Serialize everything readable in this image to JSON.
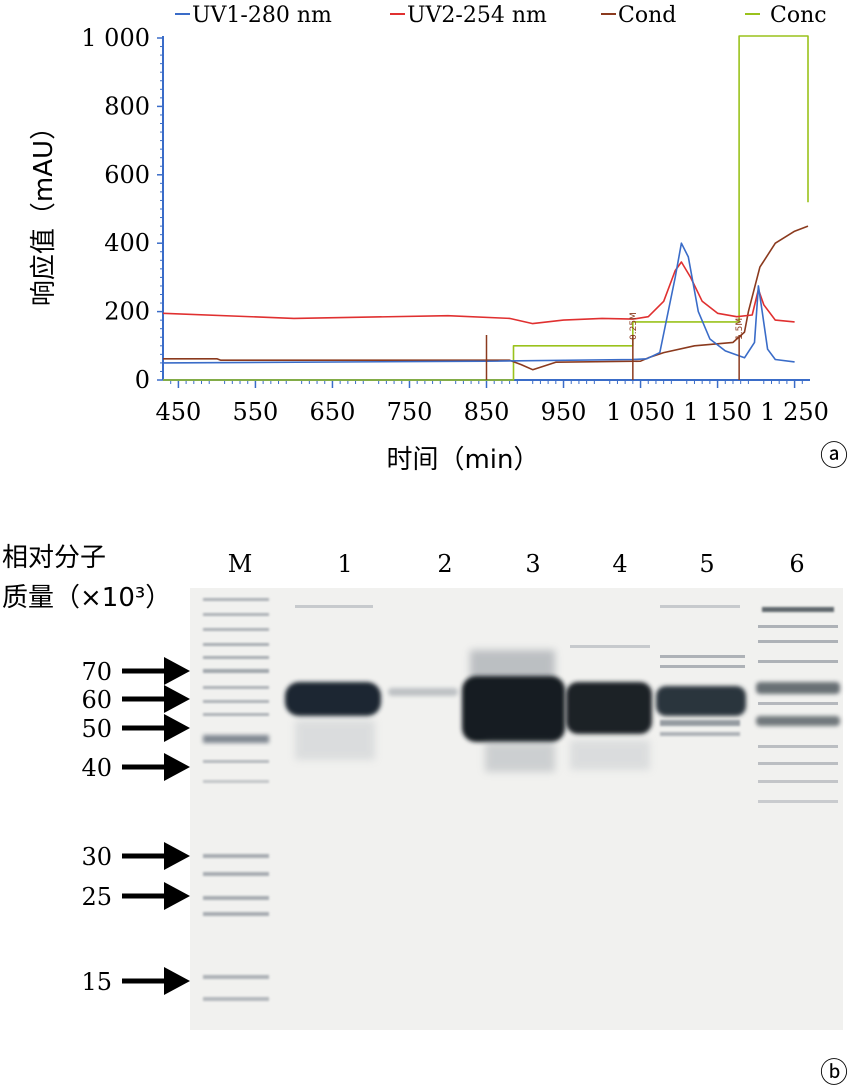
{
  "panel_a": {
    "letter": "ⓐ",
    "xlabel": "时间（min）",
    "ylabel": "响应值（mAU）",
    "legend": [
      "UV1-280 nm",
      "UV2-254 nm",
      "Cond",
      "Conc"
    ],
    "markers": [
      "0.25M",
      "1.5M"
    ]
  },
  "panel_b": {
    "letter": "ⓑ",
    "mw_label_line1": "相对分子",
    "mw_label_line2": "质量（×10³）",
    "lanes": [
      "M",
      "1",
      "2",
      "3",
      "4",
      "5",
      "6"
    ],
    "markers": [
      "70",
      "60",
      "50",
      "40",
      "30",
      "25",
      "15"
    ]
  },
  "colors": {
    "uv280": "#3a6cc8",
    "uv254": "#e03030",
    "cond": "#8b3a1e",
    "conc": "#9ac21c",
    "axis": "#3a6cc8",
    "gel": "#f1f1ef",
    "band": "#1e2830"
  },
  "chart_data": [
    {
      "type": "line",
      "xlabel": "时间（min）",
      "ylabel": "响应值（mAU）",
      "xticks": [
        "450",
        "550",
        "650",
        "750",
        "850",
        "950",
        "1 050",
        "1 150",
        "1 250"
      ],
      "yticks": [
        "0",
        "200",
        "400",
        "600",
        "800",
        "1 000"
      ],
      "xlim": [
        430,
        1270
      ],
      "ylim": [
        0,
        1000
      ],
      "grid": false,
      "legend_position": "top",
      "series": [
        {
          "name": "UV1-280 nm",
          "color": "#3a6cc8",
          "x": [
            430,
            850,
            1040,
            1058,
            1075,
            1095,
            1103,
            1112,
            1125,
            1140,
            1160,
            1185,
            1198,
            1203,
            1208,
            1215,
            1225,
            1250
          ],
          "y": [
            50,
            55,
            60,
            62,
            80,
            300,
            400,
            360,
            200,
            120,
            85,
            65,
            110,
            275,
            200,
            90,
            60,
            53
          ]
        },
        {
          "name": "UV2-254 nm",
          "color": "#e03030",
          "x": [
            430,
            600,
            800,
            880,
            910,
            950,
            1000,
            1040,
            1060,
            1080,
            1095,
            1103,
            1115,
            1130,
            1150,
            1175,
            1195,
            1203,
            1210,
            1225,
            1250
          ],
          "y": [
            195,
            180,
            188,
            180,
            165,
            175,
            180,
            178,
            185,
            230,
            320,
            345,
            300,
            230,
            195,
            185,
            190,
            265,
            220,
            175,
            170
          ]
        },
        {
          "name": "Cond",
          "color": "#8b3a1e",
          "x": [
            430,
            500,
            505,
            880,
            895,
            910,
            940,
            1050,
            1060,
            1080,
            1120,
            1170,
            1185,
            1190,
            1205,
            1225,
            1250,
            1270
          ],
          "y": [
            62,
            62,
            58,
            58,
            45,
            30,
            52,
            55,
            65,
            80,
            100,
            110,
            140,
            200,
            330,
            400,
            435,
            450
          ]
        },
        {
          "name": "Conc",
          "color": "#9ac21c",
          "x": [
            430,
            885,
            885,
            1040,
            1040,
            1178,
            1178,
            1270,
            1270,
            1280
          ],
          "y": [
            0,
            0,
            100,
            100,
            170,
            170,
            1020,
            1020,
            520,
            520
          ]
        }
      ],
      "vlines": [
        {
          "x": 850,
          "label": ""
        },
        {
          "x": 1040,
          "label": "0.25M"
        },
        {
          "x": 1178,
          "label": "1.5M"
        }
      ]
    },
    {
      "type": "gel",
      "lanes": [
        "M",
        "1",
        "2",
        "3",
        "4",
        "5",
        "6"
      ],
      "markers_kda": [
        70,
        60,
        50,
        40,
        30,
        25,
        15
      ]
    }
  ]
}
